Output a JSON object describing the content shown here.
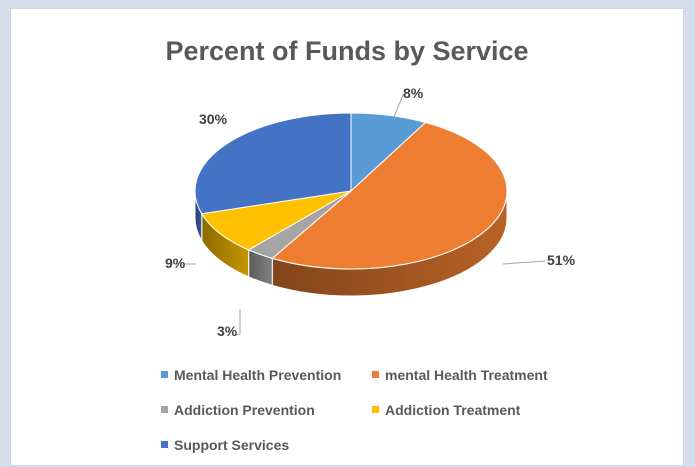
{
  "chart_data": {
    "type": "pie",
    "title": "Percent of Funds by Service",
    "three_d": true,
    "legend_position": "bottom",
    "categories": [
      "Mental Health Prevention",
      "mental Health Treatment",
      "Addiction Prevention",
      "Addiction Treatment",
      "Support Services"
    ],
    "values": [
      8,
      51,
      3,
      9,
      30
    ],
    "data_labels": [
      "8%",
      "51%",
      "3%",
      "9%",
      "30%"
    ],
    "colors": [
      "#5b9bd5",
      "#ed7d31",
      "#a5a5a5",
      "#ffc000",
      "#4472c4"
    ]
  }
}
